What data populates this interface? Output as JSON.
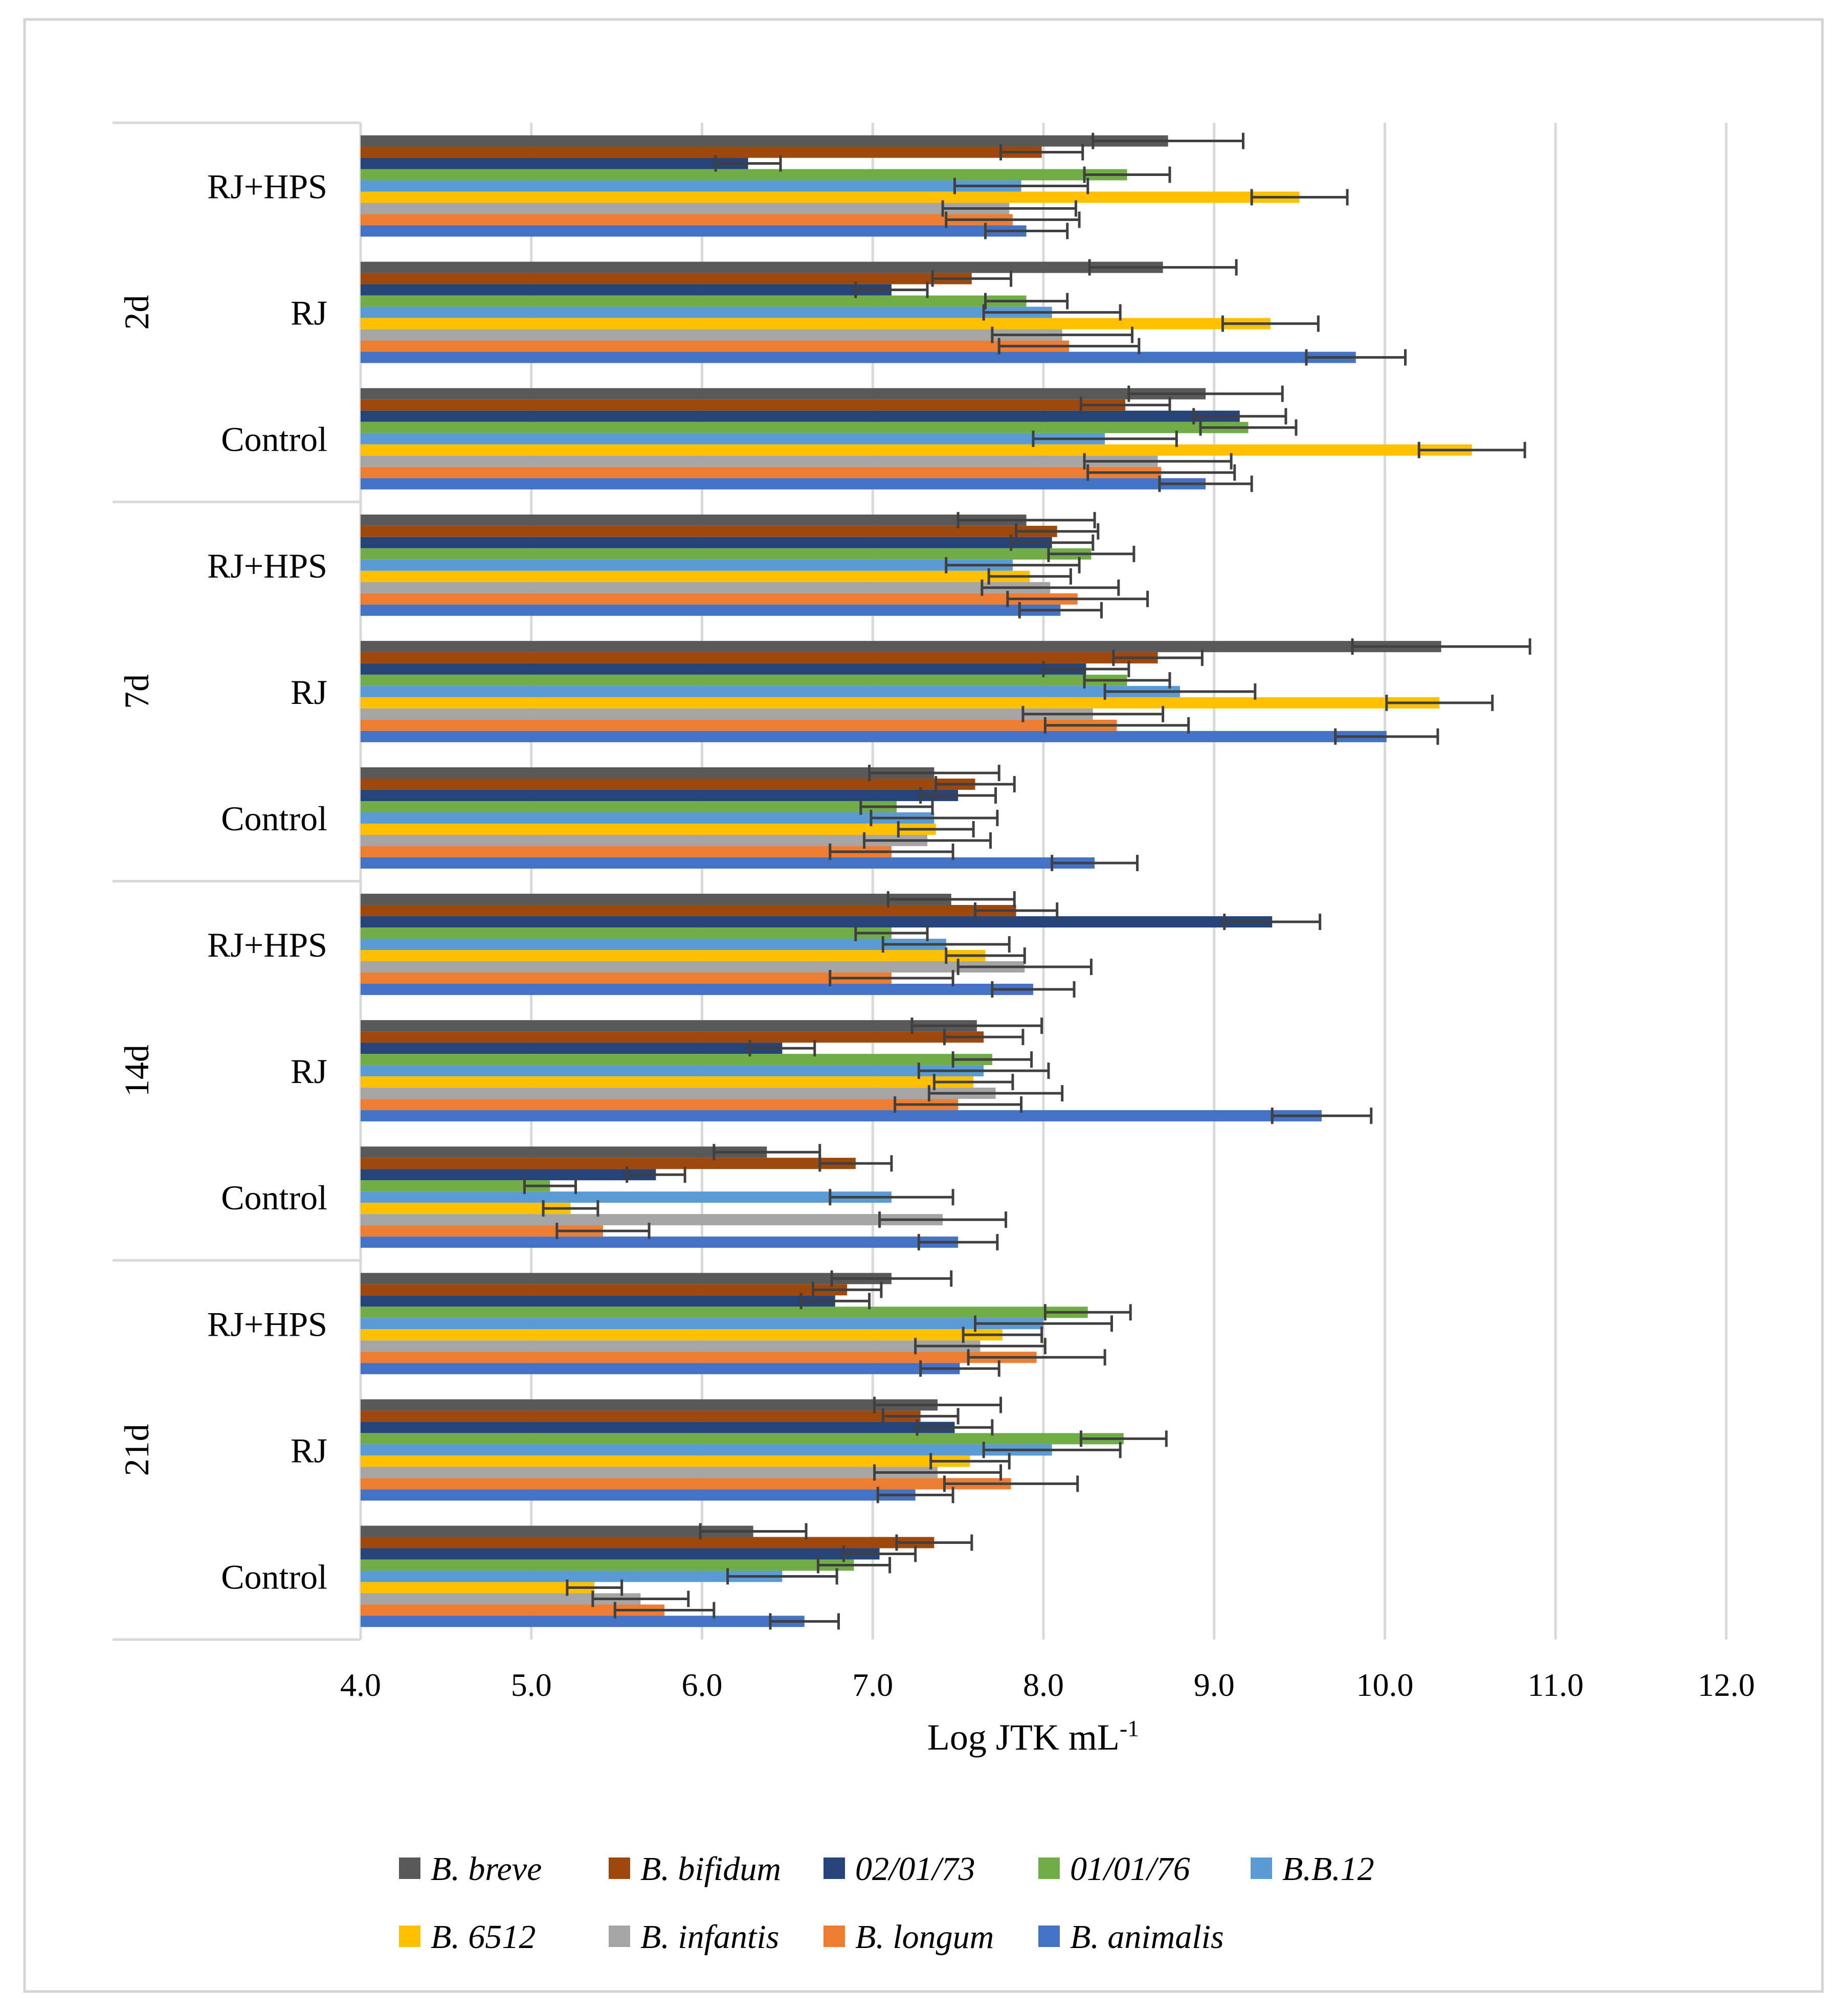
{
  "chart_data": {
    "type": "bar",
    "orientation": "horizontal",
    "xlabel": "Log JTK mL",
    "xlabel_superscript": "-1",
    "xlim": [
      4.0,
      12.0
    ],
    "xticks": [
      "4.0",
      "5.0",
      "6.0",
      "7.0",
      "8.0",
      "9.0",
      "10.0",
      "11.0",
      "12.0"
    ],
    "grid": true,
    "legend_position": "bottom",
    "groups": [
      {
        "name": "2d",
        "categories": [
          "RJ+HPS",
          "RJ",
          "Control"
        ]
      },
      {
        "name": "7d",
        "categories": [
          "RJ+HPS",
          "RJ",
          "Control"
        ]
      },
      {
        "name": "14d",
        "categories": [
          "RJ+HPS",
          "RJ",
          "Control"
        ]
      },
      {
        "name": "21d",
        "categories": [
          "RJ+HPS",
          "RJ",
          "Control"
        ]
      }
    ],
    "series": [
      {
        "name": "B. breve",
        "color": "#595959",
        "values": [
          8.73,
          8.7,
          8.95,
          7.9,
          10.33,
          7.36,
          7.46,
          7.61,
          6.38,
          7.11,
          7.38,
          6.3
        ],
        "errors": [
          0.44,
          0.43,
          0.45,
          0.4,
          0.52,
          0.38,
          0.37,
          0.38,
          0.31,
          0.35,
          0.37,
          0.31
        ]
      },
      {
        "name": "B. bifidum",
        "color": "#9E480E",
        "values": [
          7.99,
          7.58,
          8.48,
          8.08,
          8.67,
          7.6,
          7.84,
          7.65,
          6.9,
          6.85,
          7.28,
          7.36
        ],
        "errors": [
          0.24,
          0.23,
          0.26,
          0.24,
          0.26,
          0.23,
          0.24,
          0.23,
          0.21,
          0.2,
          0.22,
          0.22
        ]
      },
      {
        "name": "02/01/73",
        "color": "#264478",
        "values": [
          6.27,
          7.11,
          9.15,
          8.05,
          8.25,
          7.5,
          9.34,
          6.47,
          5.73,
          6.78,
          7.48,
          7.04
        ],
        "errors": [
          0.19,
          0.21,
          0.27,
          0.24,
          0.25,
          0.22,
          0.28,
          0.19,
          0.17,
          0.2,
          0.22,
          0.21
        ]
      },
      {
        "name": "01/01/76",
        "color": "#70AD47",
        "values": [
          8.49,
          7.9,
          9.2,
          8.28,
          8.49,
          7.14,
          7.11,
          7.7,
          5.11,
          8.26,
          8.47,
          6.89
        ],
        "errors": [
          0.25,
          0.24,
          0.28,
          0.25,
          0.25,
          0.21,
          0.21,
          0.23,
          0.15,
          0.25,
          0.25,
          0.21
        ]
      },
      {
        "name": "B.B.12",
        "color": "#5B9BD5",
        "values": [
          7.87,
          8.05,
          8.36,
          7.82,
          8.8,
          7.36,
          7.43,
          7.65,
          7.11,
          8.0,
          8.05,
          6.47
        ],
        "errors": [
          0.39,
          0.4,
          0.42,
          0.39,
          0.44,
          0.37,
          0.37,
          0.38,
          0.36,
          0.4,
          0.4,
          0.32
        ]
      },
      {
        "name": "B. 6512",
        "color": "#FFC000",
        "values": [
          9.5,
          9.33,
          10.51,
          7.92,
          10.32,
          7.37,
          7.66,
          7.59,
          5.23,
          7.76,
          7.57,
          5.37
        ],
        "errors": [
          0.28,
          0.28,
          0.31,
          0.24,
          0.31,
          0.22,
          0.23,
          0.23,
          0.16,
          0.23,
          0.23,
          0.16
        ]
      },
      {
        "name": "B. infantis",
        "color": "#A5A5A5",
        "values": [
          7.8,
          8.11,
          8.67,
          8.04,
          8.29,
          7.32,
          7.89,
          7.72,
          7.41,
          7.63,
          7.38,
          5.64
        ],
        "errors": [
          0.39,
          0.41,
          0.43,
          0.4,
          0.41,
          0.37,
          0.39,
          0.39,
          0.37,
          0.38,
          0.37,
          0.28
        ]
      },
      {
        "name": "B. longum",
        "color": "#ED7D31",
        "values": [
          7.82,
          8.15,
          8.69,
          8.2,
          8.43,
          7.11,
          7.11,
          7.5,
          5.42,
          7.96,
          7.81,
          5.78
        ],
        "errors": [
          0.39,
          0.41,
          0.43,
          0.41,
          0.42,
          0.36,
          0.36,
          0.37,
          0.27,
          0.4,
          0.39,
          0.29
        ]
      },
      {
        "name": "B. animalis",
        "color": "#4472C4",
        "values": [
          7.9,
          9.83,
          8.95,
          8.1,
          10.01,
          8.3,
          7.94,
          9.63,
          7.5,
          7.51,
          7.25,
          6.6
        ],
        "errors": [
          0.24,
          0.29,
          0.27,
          0.24,
          0.3,
          0.25,
          0.24,
          0.29,
          0.23,
          0.23,
          0.22,
          0.2
        ]
      }
    ]
  }
}
